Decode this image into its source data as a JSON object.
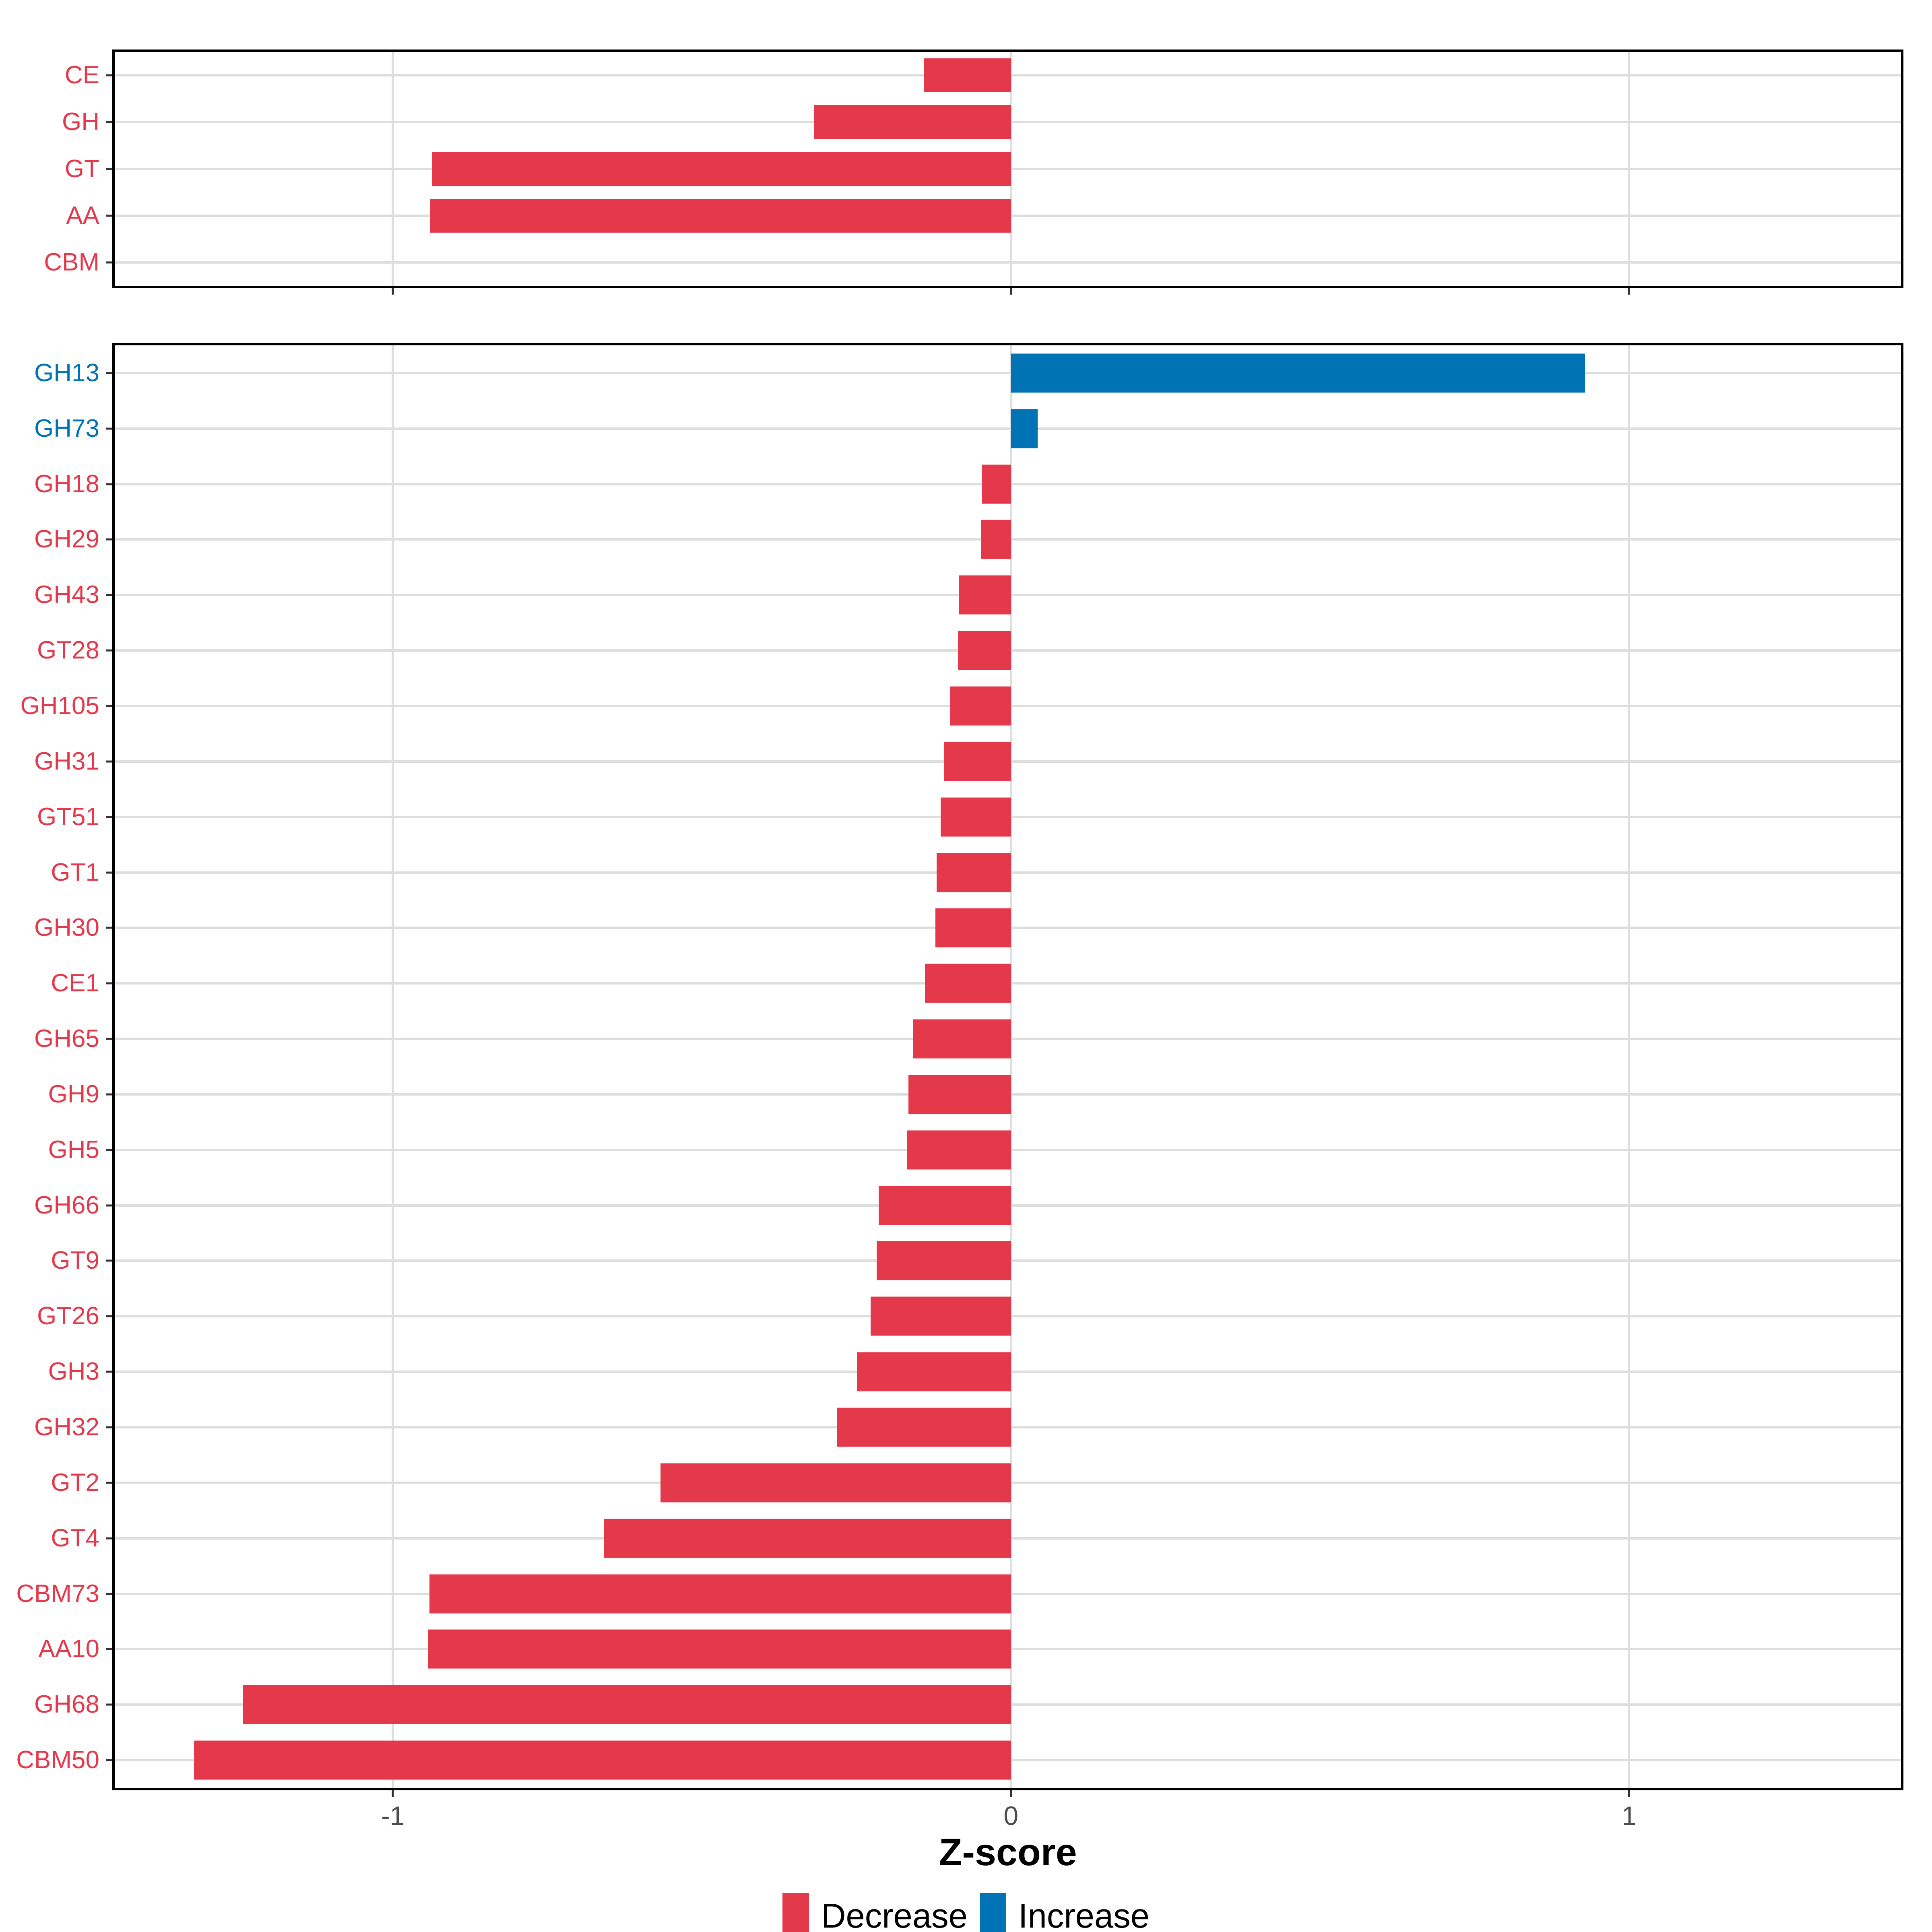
{
  "chart_data": {
    "type": "bar",
    "orientation": "horizontal",
    "title": "",
    "xlabel": "Z-score",
    "ylabel": "",
    "xlim": [
      -1.45,
      1.44
    ],
    "grid": true,
    "legend_position": "bottom",
    "colors": {
      "decrease": "#E4394B",
      "increase": "#0073B4"
    },
    "x_ticks": [
      {
        "value": -1,
        "label": "-1"
      },
      {
        "value": 0,
        "label": "0"
      },
      {
        "value": 1,
        "label": "1"
      }
    ],
    "panels": [
      {
        "name": "families",
        "rows": [
          {
            "label": "CE",
            "value": -0.141,
            "direction": "decrease"
          },
          {
            "label": "GH",
            "value": -0.319,
            "direction": "decrease"
          },
          {
            "label": "GT",
            "value": -0.937,
            "direction": "decrease"
          },
          {
            "label": "AA",
            "value": -0.94,
            "direction": "decrease"
          },
          {
            "label": "CBM",
            "value": 0.0,
            "direction": "decrease"
          }
        ]
      },
      {
        "name": "subfamilies",
        "rows": [
          {
            "label": "GH13",
            "value": 0.929,
            "direction": "increase"
          },
          {
            "label": "GH73",
            "value": 0.043,
            "direction": "increase"
          },
          {
            "label": "GH18",
            "value": -0.047,
            "direction": "decrease"
          },
          {
            "label": "GH29",
            "value": -0.048,
            "direction": "decrease"
          },
          {
            "label": "GH43",
            "value": -0.084,
            "direction": "decrease"
          },
          {
            "label": "GT28",
            "value": -0.086,
            "direction": "decrease"
          },
          {
            "label": "GH105",
            "value": -0.098,
            "direction": "decrease"
          },
          {
            "label": "GH31",
            "value": -0.108,
            "direction": "decrease"
          },
          {
            "label": "GT51",
            "value": -0.114,
            "direction": "decrease"
          },
          {
            "label": "GT1",
            "value": -0.12,
            "direction": "decrease"
          },
          {
            "label": "GH30",
            "value": -0.122,
            "direction": "decrease"
          },
          {
            "label": "CE1",
            "value": -0.139,
            "direction": "decrease"
          },
          {
            "label": "GH65",
            "value": -0.158,
            "direction": "decrease"
          },
          {
            "label": "GH9",
            "value": -0.166,
            "direction": "decrease"
          },
          {
            "label": "GH5",
            "value": -0.168,
            "direction": "decrease"
          },
          {
            "label": "GH66",
            "value": -0.214,
            "direction": "decrease"
          },
          {
            "label": "GT9",
            "value": -0.217,
            "direction": "decrease"
          },
          {
            "label": "GT26",
            "value": -0.227,
            "direction": "decrease"
          },
          {
            "label": "GH3",
            "value": -0.249,
            "direction": "decrease"
          },
          {
            "label": "GH32",
            "value": -0.282,
            "direction": "decrease"
          },
          {
            "label": "GT2",
            "value": -0.567,
            "direction": "decrease"
          },
          {
            "label": "GT4",
            "value": -0.659,
            "direction": "decrease"
          },
          {
            "label": "CBM73",
            "value": -0.941,
            "direction": "decrease"
          },
          {
            "label": "AA10",
            "value": -0.943,
            "direction": "decrease"
          },
          {
            "label": "GH68",
            "value": -1.243,
            "direction": "decrease"
          },
          {
            "label": "CBM50",
            "value": -1.322,
            "direction": "decrease"
          }
        ]
      }
    ],
    "legend": [
      {
        "label": "Decrease",
        "key": "decrease"
      },
      {
        "label": "Increase",
        "key": "increase"
      }
    ]
  }
}
